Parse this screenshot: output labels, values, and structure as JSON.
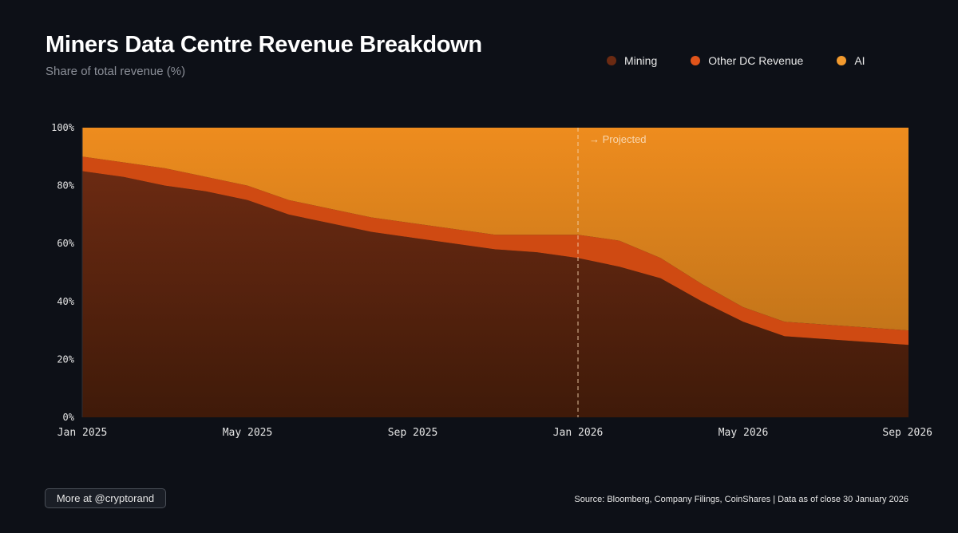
{
  "header": {
    "title": "Miners Data Centre Revenue Breakdown",
    "subtitle": "Share of total revenue (%)"
  },
  "legend": [
    {
      "label": "Mining",
      "color": "#6b2a12"
    },
    {
      "label": "Other DC Revenue",
      "color": "#e0541a"
    },
    {
      "label": "AI",
      "color": "#f29a2e"
    }
  ],
  "colors": {
    "mining_top": "#6b2a12",
    "mining_bottom": "#3f1a09",
    "other": "#cf4a12",
    "ai_top": "#ee8c1e",
    "ai_bottom": "#c4751a",
    "background": "#0d1017"
  },
  "chart_data": {
    "type": "area",
    "stacked": true,
    "title": "Miners Data Centre Revenue Breakdown",
    "subtitle": "Share of total revenue (%)",
    "ylabel": "Share of total revenue (%)",
    "ylim": [
      0,
      100
    ],
    "xlim": [
      0,
      20
    ],
    "yticks": [
      {
        "value": 0,
        "label": "0%"
      },
      {
        "value": 20,
        "label": "20%"
      },
      {
        "value": 40,
        "label": "40%"
      },
      {
        "value": 60,
        "label": "60%"
      },
      {
        "value": 80,
        "label": "80%"
      },
      {
        "value": 100,
        "label": "100%"
      }
    ],
    "xticks": [
      {
        "x": 0,
        "label": "Jan 2025"
      },
      {
        "x": 4,
        "label": "May 2025"
      },
      {
        "x": 8,
        "label": "Sep 2025"
      },
      {
        "x": 12,
        "label": "Jan 2026"
      },
      {
        "x": 16,
        "label": "May 2026"
      },
      {
        "x": 20,
        "label": "Sep 2026"
      }
    ],
    "x": [
      0,
      1,
      2,
      3,
      4,
      5,
      6,
      7,
      8,
      9,
      10,
      11,
      12,
      13,
      14,
      15,
      16,
      17,
      18,
      19,
      20
    ],
    "series": [
      {
        "name": "Mining",
        "values": [
          85,
          83,
          80,
          78,
          75,
          70,
          67,
          64,
          62,
          60,
          58,
          57,
          55,
          52,
          48,
          40,
          33,
          28,
          27,
          26,
          25
        ]
      },
      {
        "name": "Other DC Revenue",
        "values": [
          5,
          5,
          6,
          5,
          5,
          5,
          5,
          5,
          5,
          5,
          5,
          6,
          8,
          9,
          7,
          6,
          5,
          5,
          5,
          5,
          5
        ]
      },
      {
        "name": "AI",
        "values": [
          10,
          12,
          14,
          17,
          20,
          25,
          28,
          31,
          33,
          35,
          37,
          37,
          37,
          39,
          45,
          54,
          62,
          67,
          68,
          69,
          70
        ]
      }
    ],
    "projection": {
      "x": 12,
      "label": "→ Projected"
    },
    "grid": false
  },
  "footer": {
    "more_label": "More at @cryptorand",
    "source": "Source: Bloomberg, Company Filings, CoinShares | Data as of close 30 January 2026"
  }
}
